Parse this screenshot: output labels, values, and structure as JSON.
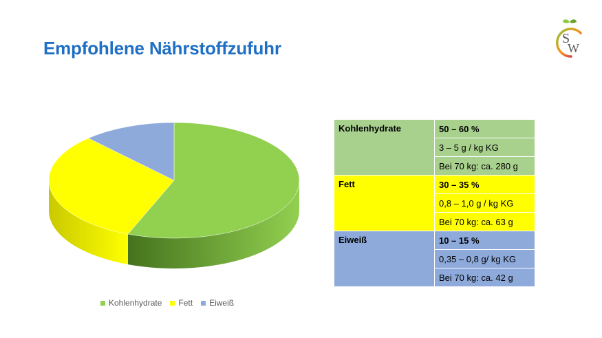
{
  "title": "Empfohlene Nährstoffzufuhr",
  "logo": {
    "letters": "SW"
  },
  "chart_data": {
    "type": "pie",
    "style": "3d",
    "categories": [
      "Kohlenhydrate",
      "Fett",
      "Eiweiß"
    ],
    "values": [
      56,
      32,
      12
    ],
    "colors": [
      "#92d050",
      "#ffff00",
      "#8eaadb"
    ],
    "side_colors": [
      "#45731e",
      "#c9c900",
      "#5d78ab"
    ],
    "legend_position": "bottom"
  },
  "table": {
    "groups": [
      {
        "name": "Kohlenhydrate",
        "color": "#a9d18e",
        "rows": [
          "50 – 60 %",
          "3 – 5 g / kg KG",
          "Bei 70 kg: ca. 280 g"
        ]
      },
      {
        "name": "Fett",
        "color": "#ffff00",
        "rows": [
          "30 – 35 %",
          "0,8 – 1,0 g / kg KG",
          "Bei 70 kg: ca. 63 g"
        ]
      },
      {
        "name": "Eiweiß",
        "color": "#8eaadb",
        "rows": [
          "10 – 15 %",
          "0,35 – 0,8 g/ kg KG",
          "Bei 70 kg: ca. 42 g"
        ]
      }
    ]
  }
}
